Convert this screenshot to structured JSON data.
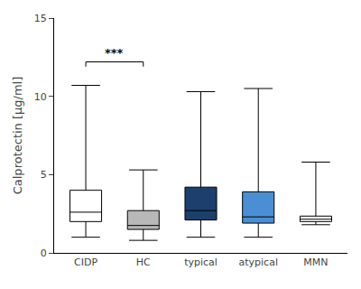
{
  "chart_data": {
    "type": "box",
    "categories": [
      "CIDP",
      "HC",
      "typical",
      "atypical",
      "MMN"
    ],
    "boxes": [
      {
        "lowerfence": 1.0,
        "q1": 2.0,
        "median": 2.6,
        "q3": 4.0,
        "upperfence": 10.7
      },
      {
        "lowerfence": 0.8,
        "q1": 1.5,
        "median": 1.75,
        "q3": 2.7,
        "upperfence": 5.3
      },
      {
        "lowerfence": 1.0,
        "q1": 2.1,
        "median": 2.7,
        "q3": 4.2,
        "upperfence": 10.3
      },
      {
        "lowerfence": 1.0,
        "q1": 1.9,
        "median": 2.3,
        "q3": 3.9,
        "upperfence": 10.5
      },
      {
        "lowerfence": 1.8,
        "q1": 2.0,
        "median": 2.15,
        "q3": 2.35,
        "upperfence": 5.8
      }
    ],
    "colors": [
      "#ffffff",
      "#b8b8b8",
      "#1c3f6e",
      "#4a8fd4",
      "#ffffff"
    ],
    "ylabel": "Calprotectin [µg/ml]",
    "ylim": [
      0,
      15
    ],
    "yticks": [
      0,
      5,
      10,
      15
    ],
    "grid": false,
    "significance": {
      "text": "***",
      "from": "CIDP",
      "to": "HC",
      "y": 12.2,
      "drop": 0.3
    }
  }
}
